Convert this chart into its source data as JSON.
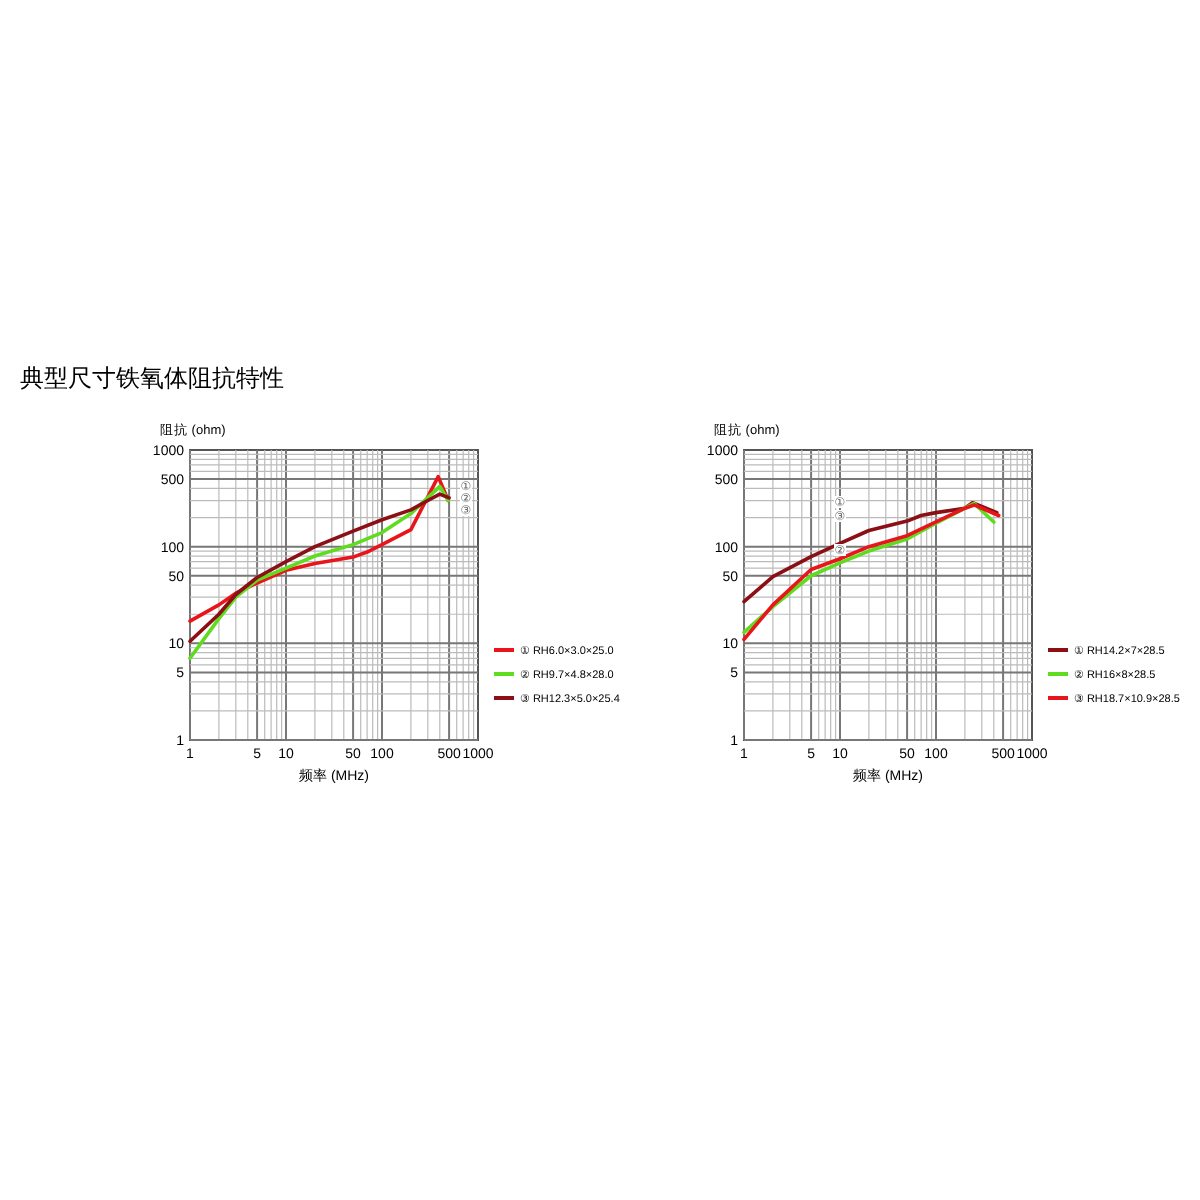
{
  "chart_data": [
    {
      "type": "line",
      "title": "典型尺寸铁氧体阻抗特性",
      "xlabel": "频率 (MHz)",
      "ylabel": "阻抗 (ohm)",
      "log": "xy",
      "grid": true,
      "legend": "right",
      "xlim": [
        1,
        1000
      ],
      "ylim": [
        1,
        1000
      ],
      "xticks": [
        1,
        5,
        10,
        50,
        100,
        500,
        1000
      ],
      "yticks": [
        1,
        5,
        10,
        50,
        100,
        500,
        1000
      ],
      "annotations": [
        "①",
        "②",
        "③"
      ],
      "series": [
        {
          "name": "① RH6.0×3.0×25.0",
          "color": "#e8161b",
          "x": [
            1,
            2,
            3,
            5,
            10,
            20,
            50,
            70,
            100,
            200,
            385,
            490
          ],
          "values": [
            17,
            25,
            33,
            42,
            57,
            67,
            78,
            88,
            105,
            150,
            530,
            300
          ]
        },
        {
          "name": "② RH9.7×4.8×28.0",
          "color": "#5fdc1f",
          "x": [
            1,
            2,
            3,
            5,
            10,
            20,
            50,
            100,
            200,
            400,
            490
          ],
          "values": [
            7,
            18,
            30,
            45,
            60,
            80,
            105,
            140,
            220,
            420,
            300
          ]
        },
        {
          "name": "③ RH12.3×5.0×25.4",
          "color": "#8b0f14",
          "x": [
            1,
            2,
            3,
            5,
            10,
            20,
            50,
            100,
            200,
            300,
            400,
            500
          ],
          "values": [
            10.5,
            20,
            32,
            48,
            70,
            100,
            145,
            190,
            240,
            300,
            350,
            320
          ]
        }
      ]
    },
    {
      "type": "line",
      "xlabel": "频率 (MHz)",
      "ylabel": "阻抗 (ohm)",
      "log": "xy",
      "grid": true,
      "legend": "right",
      "xlim": [
        1,
        1000
      ],
      "ylim": [
        1,
        1000
      ],
      "xticks": [
        1,
        5,
        10,
        50,
        100,
        500,
        1000
      ],
      "yticks": [
        1,
        5,
        10,
        50,
        100,
        500,
        1000
      ],
      "annotations": [
        "①",
        "③",
        "②"
      ],
      "series": [
        {
          "name": "① RH14.2×7×28.5",
          "color": "#8b0f14",
          "x": [
            1,
            2,
            5,
            10,
            20,
            50,
            70,
            100,
            200,
            240,
            430
          ],
          "values": [
            27,
            49,
            79,
            108,
            147,
            184,
            210,
            225,
            250,
            285,
            225
          ]
        },
        {
          "name": "② RH16×8×28.5",
          "color": "#5fdc1f",
          "x": [
            1,
            2,
            5,
            10,
            20,
            50,
            100,
            250,
            400
          ],
          "values": [
            13,
            24,
            50,
            68,
            90,
            120,
            175,
            280,
            180
          ]
        },
        {
          "name": "③ RH18.7×10.9×28.5",
          "color": "#e8161b",
          "x": [
            1,
            2,
            5,
            10,
            20,
            50,
            100,
            200,
            250,
            450
          ],
          "values": [
            11,
            25,
            58,
            75,
            100,
            130,
            180,
            250,
            270,
            210
          ]
        }
      ]
    }
  ]
}
